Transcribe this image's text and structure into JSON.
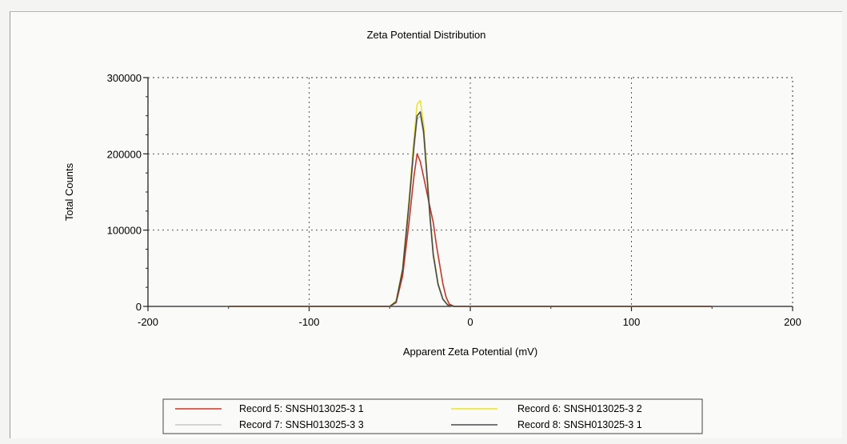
{
  "chart_data": {
    "type": "line",
    "title": "Zeta Potential Distribution",
    "xlabel": "Apparent Zeta Potential (mV)",
    "ylabel": "Total Counts",
    "xlim": [
      -200,
      200
    ],
    "ylim": [
      0,
      300000
    ],
    "x_ticks": [
      "-200",
      "-100",
      "0",
      "100",
      "200"
    ],
    "y_ticks": [
      "0",
      "100000",
      "200000",
      "300000"
    ],
    "grid": "dotted",
    "legend_position": "bottom",
    "series": [
      {
        "name": "Record 5: SNSH013025-3 1",
        "color": "#c0392b",
        "x": [
          -150,
          -50,
          -46,
          -42,
          -38,
          -35,
          -33,
          -31,
          -29,
          -27,
          -25,
          -23,
          -21,
          -19,
          -17,
          -15,
          -13,
          -10,
          0,
          150
        ],
        "y": [
          0,
          0,
          5000,
          40000,
          110000,
          170000,
          200000,
          190000,
          170000,
          150000,
          130000,
          110000,
          80000,
          55000,
          30000,
          12000,
          3000,
          0,
          0,
          0
        ]
      },
      {
        "name": "Record 6: SNSH013025-3 2",
        "color": "#e8e23a",
        "x": [
          -150,
          -50,
          -46,
          -42,
          -38,
          -35,
          -33,
          -31,
          -29,
          -27,
          -25,
          -23,
          -20,
          -17,
          -14,
          -10,
          0,
          150
        ],
        "y": [
          0,
          0,
          8000,
          50000,
          140000,
          220000,
          265000,
          270000,
          240000,
          180000,
          120000,
          70000,
          30000,
          10000,
          2000,
          0,
          0,
          0
        ]
      },
      {
        "name": "Record 7: SNSH013025-3 3",
        "color": "#c8c8c8",
        "x": [
          -150,
          -50,
          -46,
          -42,
          -38,
          -35,
          -33,
          -31,
          -29,
          -27,
          -25,
          -23,
          -20,
          -17,
          -14,
          -10,
          0,
          150
        ],
        "y": [
          0,
          0,
          6000,
          45000,
          130000,
          205000,
          245000,
          250000,
          225000,
          170000,
          115000,
          65000,
          28000,
          9000,
          1500,
          0,
          0,
          0
        ]
      },
      {
        "name": "Record 8: SNSH013025-3 1",
        "color": "#4a4a4a",
        "x": [
          -150,
          -50,
          -46,
          -42,
          -38,
          -35,
          -33,
          -31,
          -29,
          -27,
          -25,
          -23,
          -20,
          -17,
          -14,
          -10,
          0,
          150
        ],
        "y": [
          0,
          0,
          6000,
          48000,
          135000,
          210000,
          250000,
          255000,
          230000,
          175000,
          118000,
          68000,
          29000,
          9500,
          1800,
          0,
          0,
          0
        ]
      }
    ]
  }
}
